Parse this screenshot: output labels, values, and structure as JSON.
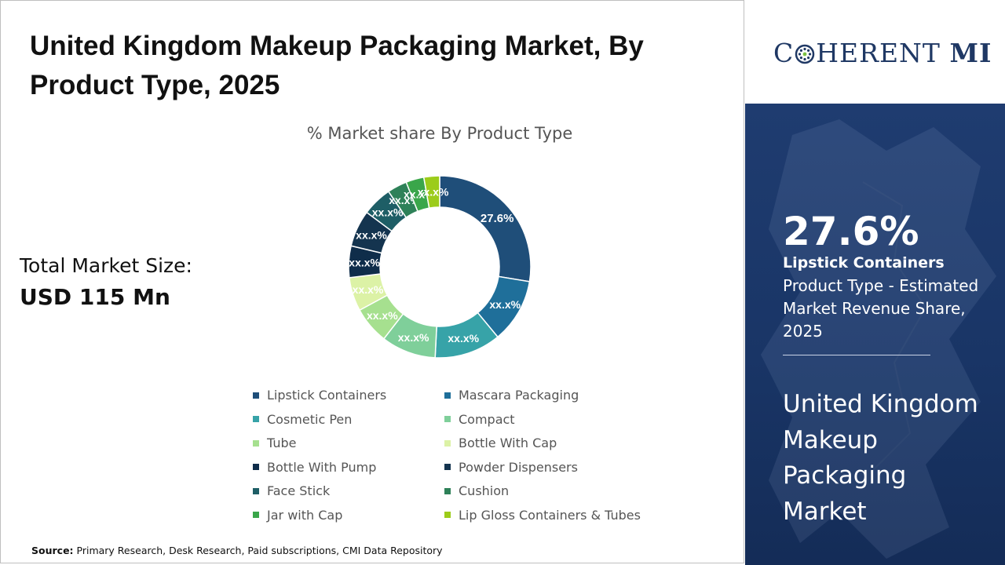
{
  "title": "United Kingdom Makeup Packaging Market, By Product Type, 2025",
  "total_market": {
    "label": "Total Market Size:",
    "value": "USD 115 Mn"
  },
  "source": {
    "label": "Source:",
    "text": " Primary Research, Desk Research, Paid subscriptions, CMI Data Repository"
  },
  "brand": {
    "logo_left": "C",
    "logo_right": "HERENT",
    "logo_mi": "MI"
  },
  "side_panel": {
    "stat_value": "27.6%",
    "stat_name": "Lipstick Containers",
    "stat_desc": "Product Type - Estimated Market Revenue Share, 2025",
    "market_name": "United Kingdom Makeup Packaging Market"
  },
  "chart_data": {
    "type": "pie",
    "subtitle": "% Market share By Product Type",
    "categories": [
      "Lipstick Containers",
      "Mascara Packaging",
      "Cosmetic Pen",
      "Compact",
      "Tube",
      "Bottle With Cap",
      "Bottle With Pump",
      "Powder Dispensers",
      "Face Stick",
      "Cushion",
      "Jar with Cap",
      "Lip Gloss Containers & Tubes"
    ],
    "values": [
      27.6,
      11.4,
      11.8,
      9.7,
      6.6,
      6.0,
      5.6,
      6.5,
      5.3,
      3.5,
      3.2,
      2.8
    ],
    "data_labels": [
      "27.6%",
      "xx.x%",
      "xx.x%",
      "xx.x%",
      "xx.x%",
      "xx.x%",
      "xx.x%",
      "xx.x%",
      "xx.x%",
      "xx.x%",
      "xx.x%",
      "xx.x%"
    ],
    "colors": [
      "#1f4e79",
      "#1f6f9a",
      "#37a3a8",
      "#7fcf9a",
      "#a6e08f",
      "#dcf2a6",
      "#0f2d4a",
      "#14344f",
      "#1e5e66",
      "#2e8158",
      "#3aa64a",
      "#9ccc1a"
    ],
    "legend_position": "bottom",
    "hole": "donut"
  }
}
